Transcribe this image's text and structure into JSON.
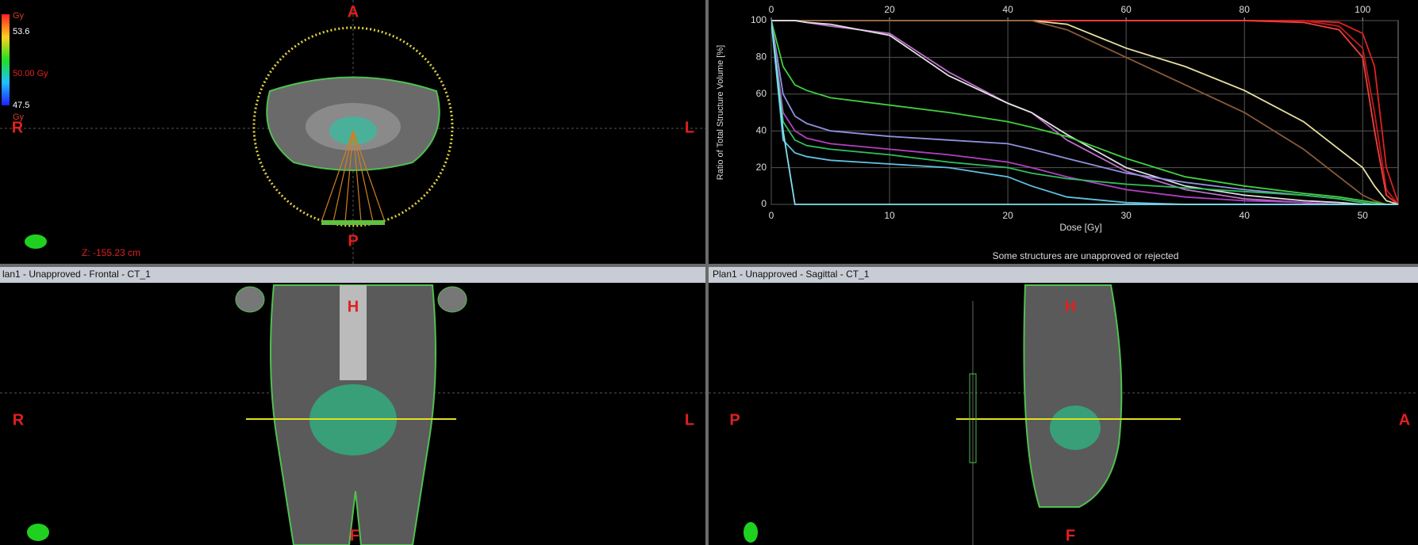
{
  "axial_view": {
    "orientation": {
      "top": "A",
      "left": "R",
      "right": "L",
      "bottom": "P"
    },
    "colorbar": {
      "max_unit": "Gy",
      "max": 53.6,
      "reference": "50.00 Gy",
      "min": 47.5,
      "min_unit": "Gy"
    },
    "coordinate": "Z: -155.23 cm"
  },
  "frontal_view": {
    "title": "lan1 - Unapproved - Frontal - CT_1",
    "orientation": {
      "top": "H",
      "left": "R",
      "right": "L",
      "bottom": "F"
    }
  },
  "sagittal_view": {
    "title": "Plan1 - Unapproved - Sagittal - CT_1",
    "orientation": {
      "top": "H",
      "left": "P",
      "right": "A",
      "bottom": "F"
    }
  },
  "chart_data": {
    "type": "line",
    "y_label": "Ratio of Total Structure Volume [%]",
    "x_label": "Dose [Gy]",
    "note": "Some structures are unapproved or rejected",
    "x": [
      0,
      1,
      2,
      3,
      5,
      10,
      15,
      20,
      22,
      25,
      30,
      35,
      40,
      45,
      48,
      50,
      51,
      52,
      53
    ],
    "xlim": [
      0,
      53
    ],
    "xticks": [
      0,
      10,
      20,
      30,
      40,
      50
    ],
    "x2lim": [
      0,
      106
    ],
    "x2ticks": [
      0,
      20,
      40,
      60,
      80,
      100
    ],
    "ylim": [
      0,
      100
    ],
    "yticks": [
      0,
      20,
      40,
      60,
      80,
      100
    ],
    "grid": true,
    "series": [
      {
        "color": "#e02020",
        "values": [
          100,
          100,
          100,
          100,
          100,
          100,
          100,
          100,
          100,
          100,
          100,
          100,
          100,
          100,
          99,
          93,
          75,
          20,
          1
        ]
      },
      {
        "color": "#c81818",
        "values": [
          100,
          100,
          100,
          100,
          100,
          100,
          100,
          100,
          100,
          100,
          100,
          100,
          100,
          100,
          97,
          85,
          50,
          8,
          0
        ]
      },
      {
        "color": "#f04040",
        "values": [
          100,
          100,
          100,
          100,
          100,
          100,
          100,
          100,
          100,
          100,
          100,
          100,
          100,
          99,
          95,
          80,
          40,
          5,
          0
        ]
      },
      {
        "color": "#e8e0a0",
        "values": [
          100,
          100,
          100,
          100,
          100,
          100,
          100,
          100,
          100,
          98,
          85,
          75,
          62,
          45,
          30,
          20,
          10,
          2,
          0
        ]
      },
      {
        "color": "#8a5a3a",
        "values": [
          100,
          100,
          100,
          100,
          100,
          100,
          100,
          100,
          100,
          95,
          80,
          65,
          50,
          30,
          15,
          5,
          2,
          0,
          0
        ]
      },
      {
        "color": "#c070d0",
        "values": [
          100,
          100,
          100,
          99,
          97,
          93,
          72,
          55,
          50,
          35,
          18,
          8,
          3,
          1,
          0,
          0,
          0,
          0,
          0
        ]
      },
      {
        "color": "#e0e0e0",
        "values": [
          100,
          100,
          100,
          99,
          98,
          92,
          70,
          55,
          50,
          38,
          20,
          10,
          5,
          2,
          1,
          0,
          0,
          0,
          0
        ]
      },
      {
        "color": "#40d040",
        "values": [
          100,
          75,
          65,
          62,
          58,
          54,
          50,
          45,
          42,
          37,
          25,
          15,
          10,
          6,
          4,
          2,
          1,
          0,
          0
        ]
      },
      {
        "color": "#9090e0",
        "values": [
          100,
          60,
          48,
          44,
          40,
          37,
          35,
          33,
          30,
          25,
          17,
          12,
          8,
          5,
          3,
          1,
          0,
          0,
          0
        ]
      },
      {
        "color": "#b040c0",
        "values": [
          100,
          50,
          40,
          36,
          33,
          30,
          27,
          23,
          20,
          15,
          8,
          4,
          2,
          1,
          0,
          0,
          0,
          0,
          0
        ]
      },
      {
        "color": "#30c060",
        "values": [
          100,
          45,
          35,
          32,
          30,
          27,
          23,
          20,
          17,
          14,
          11,
          9,
          7,
          5,
          3,
          1,
          0,
          0,
          0
        ]
      },
      {
        "color": "#60c0e0",
        "values": [
          100,
          35,
          28,
          26,
          24,
          22,
          20,
          15,
          10,
          4,
          1,
          0,
          0,
          0,
          0,
          0,
          0,
          0,
          0
        ]
      },
      {
        "color": "#80e0f0",
        "values": [
          100,
          40,
          0,
          0,
          0,
          0,
          0,
          0,
          0,
          0,
          0,
          0,
          0,
          0,
          0,
          0,
          0,
          0,
          0
        ]
      }
    ]
  }
}
